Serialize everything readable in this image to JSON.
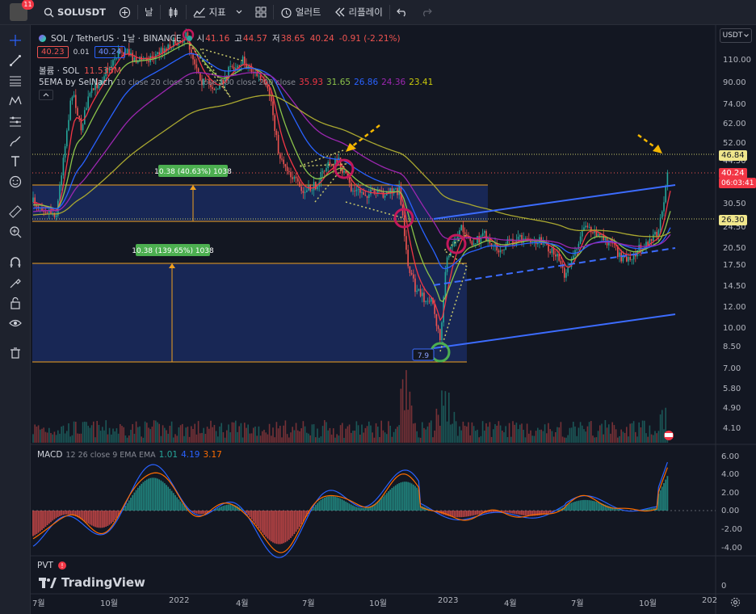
{
  "toolbar": {
    "avatar_badge": "11",
    "symbol": "SOLUSDT",
    "interval": "날",
    "indicators_label": "지표",
    "alerts_label": "얼러트",
    "replay_label": "리플레이"
  },
  "legend": {
    "title": "SOL / TetherUS · 1날 · BINANCE",
    "o_label": "시",
    "o_value": "41.16",
    "h_label": "고",
    "h_value": "44.57",
    "l_label": "저",
    "l_value": "38.65",
    "c_value": "40.24",
    "change": "-0.91 (-2.21%)",
    "bid": "40.23",
    "spread": "0.01",
    "ask": "40.24",
    "volume_label": "볼륨 · SOL",
    "volume_value": "11.533M",
    "ema_label": "5EMA by SelNach",
    "ema_params": "10 close 20 close 50 close 100 close 200 close",
    "ema_values": [
      "35.93",
      "31.65",
      "26.86",
      "24.36",
      "23.41"
    ]
  },
  "currency": "USDT",
  "price_axis": [
    "110.00",
    "90.00",
    "74.00",
    "62.00",
    "52.00",
    "44.50",
    "36.00",
    "30.50",
    "24.50",
    "20.50",
    "17.50",
    "14.50",
    "12.00",
    "10.00",
    "8.50",
    "7.00",
    "5.80",
    "4.90",
    "4.10"
  ],
  "price_tags": {
    "level_high": "46.84",
    "last": "40.24",
    "countdown": "06:03:41",
    "level_low": "26.30"
  },
  "measures": {
    "upper": "10.38 (40.63%) 1038",
    "lower": "10.38 (139.65%) 1038",
    "low_label": "7.9"
  },
  "macd": {
    "label": "MACD",
    "params": "12 26 close 9 EMA EMA",
    "v1": "1.01",
    "v2": "4.19",
    "v3": "3.17",
    "axis": [
      "6.00",
      "4.00",
      "2.00",
      "0.00",
      "-2.00",
      "-4.00"
    ]
  },
  "pvt": {
    "label": "PVT",
    "axis": "0"
  },
  "brand": "TradingView",
  "time_axis": [
    "7월",
    "10월",
    "2022",
    "4월",
    "7월",
    "10월",
    "2023",
    "4월",
    "7월",
    "10월",
    "202"
  ],
  "colors": {
    "bg": "#131722",
    "up": "#26a69a",
    "down": "#ef5350",
    "ema10": "#f23645",
    "ema20": "#8bc34a",
    "ema50": "#2962ff",
    "ema100": "#9c27b0",
    "ema200": "#aaa830",
    "box": "#1e3580",
    "box_border": "#f0a020",
    "trend": "#3c6cff",
    "arrow": "#f5b700",
    "circle_red": "#c2185b",
    "circle_green": "#4caf50",
    "macd_line": "#2962ff",
    "signal_line": "#ff6d00"
  }
}
